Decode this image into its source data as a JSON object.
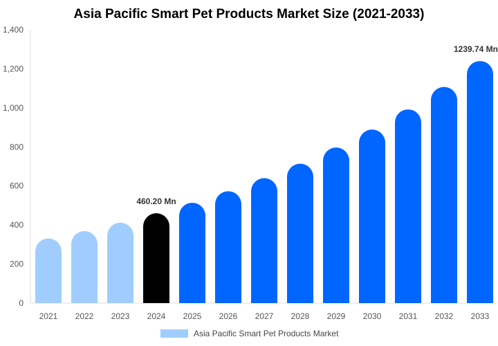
{
  "chart_data": {
    "type": "bar",
    "title": "Asia Pacific Smart Pet Products Market Size (2021-2033)",
    "categories": [
      "2021",
      "2022",
      "2023",
      "2024",
      "2025",
      "2026",
      "2027",
      "2028",
      "2029",
      "2030",
      "2031",
      "2032",
      "2033"
    ],
    "series": [
      {
        "name": "Asia Pacific Smart Pet Products Market",
        "values": [
          331,
          369,
          412,
          460.2,
          514,
          573,
          640,
          714,
          797,
          889,
          992,
          1107,
          1239.74
        ]
      }
    ],
    "data_labels": {
      "3": "460.20 Mn",
      "12": "1239.74 Mn"
    },
    "ylim": [
      0,
      1400
    ],
    "yticks": [
      0,
      200,
      400,
      600,
      800,
      1000,
      1200,
      1400
    ],
    "ytick_labels": [
      "0",
      "200",
      "400",
      "600",
      "800",
      "1,000",
      "1,200",
      "1,400"
    ],
    "grid": false,
    "legend_position": "bottom",
    "colors": {
      "historical": "#a0cdfd",
      "base_year": "#000000",
      "forecast": "#0066ff"
    },
    "xlabel": "",
    "ylabel": ""
  }
}
